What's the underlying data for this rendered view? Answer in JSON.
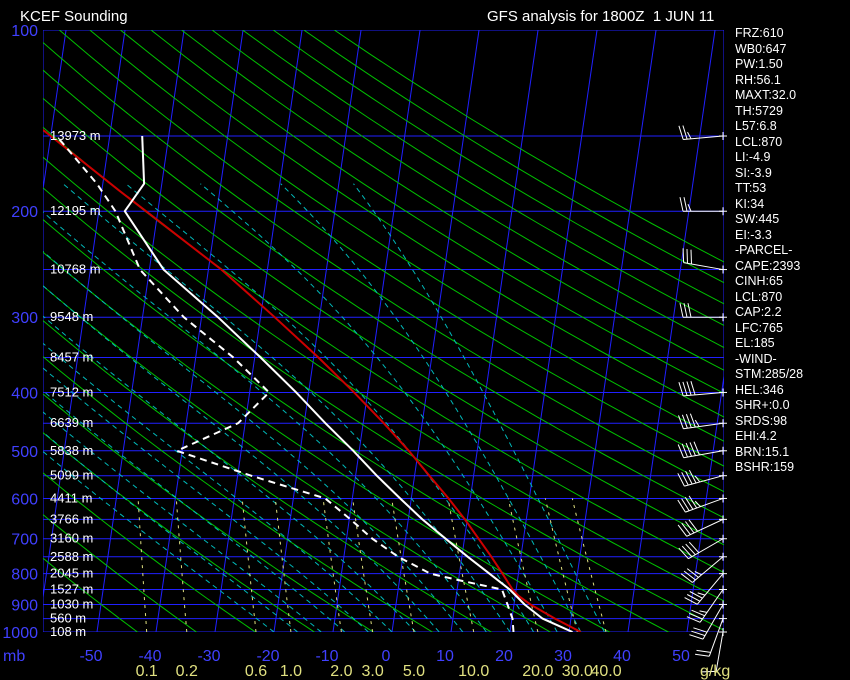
{
  "header": {
    "station": "KCEF Sounding",
    "analysis": "GFS analysis for 1800Z  1 JUN 11"
  },
  "indices": [
    "FRZ:610",
    "WB0:647",
    "PW:1.50",
    "RH:56.1",
    "MAXT:32.0",
    "TH:5729",
    "L57:6.8",
    "LCL:870",
    "LI:-4.9",
    "SI:-3.9",
    "TT:53",
    "KI:34",
    "SW:445",
    "EI:-3.3",
    "-PARCEL-",
    "CAPE:2393",
    "CINH:65",
    "LCL:870",
    "CAP:2.2",
    "LFC:765",
    "EL:185",
    "-WIND-",
    "STM:285/28",
    "HEL:346",
    "SHR+:0.0",
    "SRDS:98",
    "EHI:4.2",
    "BRN:15.1",
    "BSHR:159"
  ],
  "colors": {
    "background": "#000000",
    "isobar": "#2020ff",
    "isotherm": "#2020ff",
    "dry_adiabat": "#00c000",
    "moist_adiabat": "#00b8b8",
    "mixing_ratio": "#e0e080",
    "temperature": "#ffffff",
    "dewpoint": "#ffffff",
    "parcel": "#cc0000",
    "wind": "#ffffff",
    "height_label": "#ffffff",
    "pressure_label": "#4040ff",
    "temp_label": "#4040ff",
    "mixing_label": "#e0e080"
  },
  "chart_data": {
    "type": "line",
    "diagram": "skew-T log-P",
    "pressure_axis": {
      "unit_label": "mb",
      "range": [
        1000,
        100
      ],
      "scale": "log",
      "labels": [
        100,
        200,
        300,
        400,
        500,
        600,
        700,
        800,
        900,
        1000
      ]
    },
    "temperature_axis": {
      "range": [
        -50,
        50
      ],
      "labels": [
        "-50",
        "-40",
        "-30",
        "-20",
        "-10",
        "0",
        "10",
        "20",
        "30",
        "40",
        "50"
      ]
    },
    "mixing_ratio_axis": {
      "unit_label": "g/kg",
      "labels": [
        "0.1",
        "0.2",
        "0.6",
        "1.0",
        "2.0",
        "3.0",
        "5.0",
        "10.0",
        "20.0",
        "30.0",
        "40.0"
      ],
      "values": [
        0.1,
        0.2,
        0.6,
        1.0,
        2.0,
        3.0,
        5.0,
        10.0,
        20.0,
        30.0,
        40.0
      ]
    },
    "height_levels": [
      {
        "p": 1000,
        "label": "108 m"
      },
      {
        "p": 950,
        "label": "560 m"
      },
      {
        "p": 900,
        "label": "1030 m"
      },
      {
        "p": 850,
        "label": "1527 m"
      },
      {
        "p": 800,
        "label": "2045 m"
      },
      {
        "p": 750,
        "label": "2588 m"
      },
      {
        "p": 700,
        "label": "3160 m"
      },
      {
        "p": 650,
        "label": "3766 m"
      },
      {
        "p": 600,
        "label": "4411 m"
      },
      {
        "p": 550,
        "label": "5099 m"
      },
      {
        "p": 500,
        "label": "5838 m"
      },
      {
        "p": 450,
        "label": "6639 m"
      },
      {
        "p": 400,
        "label": "7512 m"
      },
      {
        "p": 350,
        "label": "8457 m"
      },
      {
        "p": 300,
        "label": "9548 m"
      },
      {
        "p": 250,
        "label": "10768 m"
      },
      {
        "p": 200,
        "label": "12195 m"
      },
      {
        "p": 150,
        "label": "13973 m"
      }
    ],
    "temperature_profile": [
      {
        "p": 1000,
        "t": 30.6
      },
      {
        "p": 950,
        "t": 25.2
      },
      {
        "p": 900,
        "t": 21.8
      },
      {
        "p": 850,
        "t": 18.9
      },
      {
        "p": 800,
        "t": 15.1
      },
      {
        "p": 750,
        "t": 11.0
      },
      {
        "p": 700,
        "t": 6.8
      },
      {
        "p": 650,
        "t": 2.4
      },
      {
        "p": 600,
        "t": -1.9
      },
      {
        "p": 550,
        "t": -6.4
      },
      {
        "p": 500,
        "t": -11.0
      },
      {
        "p": 450,
        "t": -16.4
      },
      {
        "p": 400,
        "t": -22.1
      },
      {
        "p": 350,
        "t": -29.0
      },
      {
        "p": 300,
        "t": -37.2
      },
      {
        "p": 250,
        "t": -47.6
      },
      {
        "p": 200,
        "t": -55.6
      },
      {
        "p": 180,
        "t": -53.0
      },
      {
        "p": 150,
        "t": -54.5
      }
    ],
    "dewpoint_profile": [
      {
        "p": 1000,
        "t": 20.6
      },
      {
        "p": 950,
        "t": 20.1
      },
      {
        "p": 900,
        "t": 18.9
      },
      {
        "p": 850,
        "t": 17.6
      },
      {
        "p": 820,
        "t": 10.0
      },
      {
        "p": 800,
        "t": 5.1
      },
      {
        "p": 750,
        "t": -0.8
      },
      {
        "p": 700,
        "t": -5.6
      },
      {
        "p": 650,
        "t": -9.8
      },
      {
        "p": 600,
        "t": -14.6
      },
      {
        "p": 550,
        "t": -27.7
      },
      {
        "p": 500,
        "t": -40.9
      },
      {
        "p": 450,
        "t": -31.2
      },
      {
        "p": 400,
        "t": -26.7
      },
      {
        "p": 350,
        "t": -33.6
      },
      {
        "p": 300,
        "t": -43.0
      },
      {
        "p": 250,
        "t": -51.6
      },
      {
        "p": 200,
        "t": -57.2
      },
      {
        "p": 180,
        "t": -61.0
      },
      {
        "p": 150,
        "t": -69.0
      }
    ],
    "parcel_profile": [
      {
        "p": 1000,
        "t": 32.0
      },
      {
        "p": 950,
        "t": 27.3
      },
      {
        "p": 900,
        "t": 22.8
      },
      {
        "p": 870,
        "t": 20.5
      },
      {
        "p": 850,
        "t": 19.4
      },
      {
        "p": 800,
        "t": 17.3
      },
      {
        "p": 750,
        "t": 15.0
      },
      {
        "p": 700,
        "t": 12.4
      },
      {
        "p": 650,
        "t": 9.6
      },
      {
        "p": 600,
        "t": 6.3
      },
      {
        "p": 550,
        "t": 2.5
      },
      {
        "p": 500,
        "t": -1.6
      },
      {
        "p": 450,
        "t": -6.5
      },
      {
        "p": 400,
        "t": -12.3
      },
      {
        "p": 350,
        "t": -19.2
      },
      {
        "p": 300,
        "t": -27.6
      },
      {
        "p": 250,
        "t": -37.8
      },
      {
        "p": 200,
        "t": -52.0
      },
      {
        "p": 185,
        "t": -57.0
      },
      {
        "p": 150,
        "t": -70.0
      },
      {
        "p": 120,
        "t": -84.0
      }
    ],
    "winds": [
      {
        "p": 1000,
        "dir": 190,
        "spd": 10
      },
      {
        "p": 950,
        "dir": 200,
        "spd": 20
      },
      {
        "p": 900,
        "dir": 210,
        "spd": 30
      },
      {
        "p": 850,
        "dir": 215,
        "spd": 35
      },
      {
        "p": 800,
        "dir": 220,
        "spd": 35
      },
      {
        "p": 750,
        "dir": 230,
        "spd": 35
      },
      {
        "p": 700,
        "dir": 240,
        "spd": 40
      },
      {
        "p": 650,
        "dir": 245,
        "spd": 40
      },
      {
        "p": 600,
        "dir": 250,
        "spd": 45
      },
      {
        "p": 550,
        "dir": 255,
        "spd": 45
      },
      {
        "p": 500,
        "dir": 260,
        "spd": 50
      },
      {
        "p": 450,
        "dir": 262,
        "spd": 45
      },
      {
        "p": 400,
        "dir": 265,
        "spd": 40
      },
      {
        "p": 300,
        "dir": 270,
        "spd": 30
      },
      {
        "p": 250,
        "dir": 280,
        "spd": 30
      },
      {
        "p": 200,
        "dir": 270,
        "spd": 25
      },
      {
        "p": 150,
        "dir": 265,
        "spd": 25
      }
    ]
  }
}
